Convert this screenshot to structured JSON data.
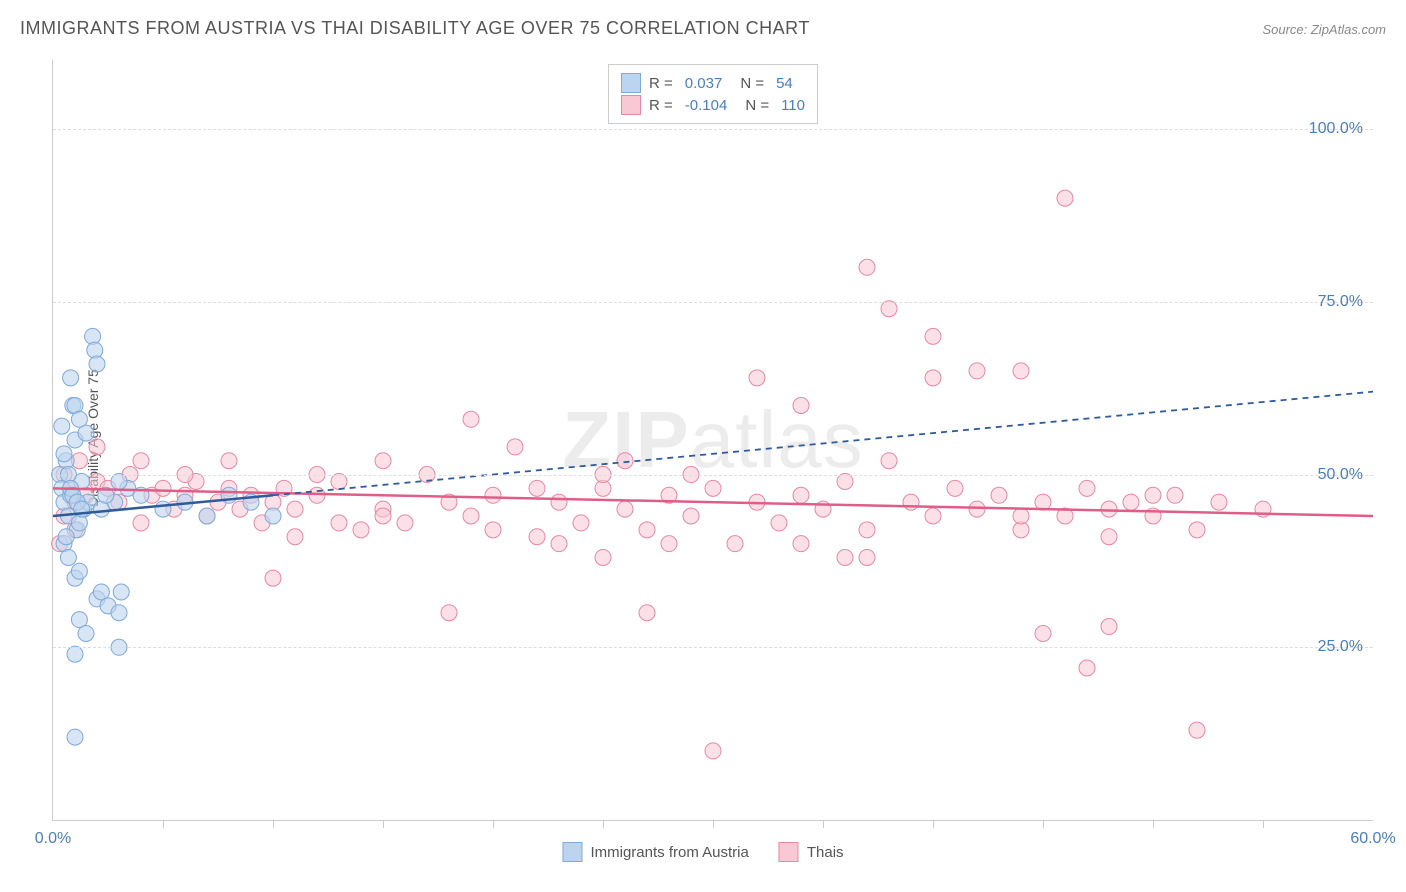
{
  "title": "IMMIGRANTS FROM AUSTRIA VS THAI DISABILITY AGE OVER 75 CORRELATION CHART",
  "source": "Source: ZipAtlas.com",
  "ylabel": "Disability Age Over 75",
  "watermark_part1": "ZIP",
  "watermark_part2": "atlas",
  "chart": {
    "type": "scatter",
    "xlim": [
      0,
      60
    ],
    "ylim": [
      0,
      110
    ],
    "yticks": [
      25,
      50,
      75,
      100
    ],
    "ytick_labels": [
      "25.0%",
      "50.0%",
      "75.0%",
      "100.0%"
    ],
    "xticks_minor": [
      5,
      10,
      15,
      20,
      25,
      30,
      35,
      40,
      45,
      50,
      55
    ],
    "xtick_labels": {
      "0": "0.0%",
      "60": "60.0%"
    },
    "background_color": "#ffffff",
    "grid_color": "#dddddd",
    "axis_color": "#cccccc",
    "tick_label_color": "#4a7ebb",
    "marker_radius": 8,
    "marker_stroke_width": 1,
    "series": [
      {
        "name": "Immigrants from Austria",
        "fill": "#bdd4ee",
        "stroke": "#7fa9d9",
        "fill_opacity": 0.6,
        "R": "0.037",
        "N": "54",
        "trend": {
          "x1": 0,
          "y1": 44,
          "x2": 10,
          "y2": 47,
          "solid": true
        },
        "trend_extrapolate": {
          "x1": 10,
          "y1": 47,
          "x2": 60,
          "y2": 62
        },
        "trend_color": "#2f5b9a",
        "points": [
          [
            0.3,
            50
          ],
          [
            0.4,
            48
          ],
          [
            0.5,
            46
          ],
          [
            0.6,
            52
          ],
          [
            0.7,
            44
          ],
          [
            0.8,
            47
          ],
          [
            0.9,
            60
          ],
          [
            1.0,
            55
          ],
          [
            1.1,
            42
          ],
          [
            1.2,
            43
          ],
          [
            1.3,
            49
          ],
          [
            1.4,
            45
          ],
          [
            1.5,
            56
          ],
          [
            1.6,
            46
          ],
          [
            0.5,
            40
          ],
          [
            0.6,
            41
          ],
          [
            0.7,
            38
          ],
          [
            1.0,
            35
          ],
          [
            1.2,
            36
          ],
          [
            2.0,
            32
          ],
          [
            2.2,
            33
          ],
          [
            2.5,
            31
          ],
          [
            3.0,
            30
          ],
          [
            3.1,
            33
          ],
          [
            2.8,
            46
          ],
          [
            3.4,
            48
          ],
          [
            1.8,
            70
          ],
          [
            1.9,
            68
          ],
          [
            2.0,
            66
          ],
          [
            0.8,
            64
          ],
          [
            1.0,
            60
          ],
          [
            1.2,
            58
          ],
          [
            2.2,
            45
          ],
          [
            2.4,
            47
          ],
          [
            3.0,
            49
          ],
          [
            4.0,
            47
          ],
          [
            5.0,
            45
          ],
          [
            6.0,
            46
          ],
          [
            7.0,
            44
          ],
          [
            8.0,
            47
          ],
          [
            9.0,
            46
          ],
          [
            10.0,
            44
          ],
          [
            1.2,
            29
          ],
          [
            1.5,
            27
          ],
          [
            1.0,
            24
          ],
          [
            3.0,
            25
          ],
          [
            1.0,
            12
          ],
          [
            0.4,
            57
          ],
          [
            0.5,
            53
          ],
          [
            0.7,
            50
          ],
          [
            0.8,
            48
          ],
          [
            0.9,
            47
          ],
          [
            1.1,
            46
          ],
          [
            1.3,
            45
          ]
        ]
      },
      {
        "name": "Thais",
        "fill": "#f8c8d4",
        "stroke": "#e688a2",
        "fill_opacity": 0.55,
        "R": "-0.104",
        "N": "110",
        "trend": {
          "x1": 0,
          "y1": 48,
          "x2": 60,
          "y2": 44,
          "solid": true
        },
        "trend_color": "#de5e88",
        "points": [
          [
            0.5,
            50
          ],
          [
            0.8,
            48
          ],
          [
            1.0,
            46
          ],
          [
            1.2,
            52
          ],
          [
            1.5,
            47
          ],
          [
            2.0,
            49
          ],
          [
            2.5,
            48
          ],
          [
            3.0,
            46
          ],
          [
            3.5,
            50
          ],
          [
            4.0,
            43
          ],
          [
            4.5,
            47
          ],
          [
            5.0,
            48
          ],
          [
            5.5,
            45
          ],
          [
            6.0,
            47
          ],
          [
            6.5,
            49
          ],
          [
            7.0,
            44
          ],
          [
            7.5,
            46
          ],
          [
            8.0,
            48
          ],
          [
            8.5,
            45
          ],
          [
            9.0,
            47
          ],
          [
            9.5,
            43
          ],
          [
            10.0,
            46
          ],
          [
            10.5,
            48
          ],
          [
            11.0,
            45
          ],
          [
            12.0,
            47
          ],
          [
            13.0,
            49
          ],
          [
            10.0,
            35
          ],
          [
            14.0,
            42
          ],
          [
            15.0,
            45
          ],
          [
            16.0,
            43
          ],
          [
            17.0,
            50
          ],
          [
            18.0,
            46
          ],
          [
            15.0,
            52
          ],
          [
            19.0,
            44
          ],
          [
            20.0,
            47
          ],
          [
            21.0,
            54
          ],
          [
            22.0,
            41
          ],
          [
            23.0,
            46
          ],
          [
            18.0,
            30
          ],
          [
            24.0,
            43
          ],
          [
            25.0,
            48
          ],
          [
            26.0,
            45
          ],
          [
            27.0,
            42
          ],
          [
            28.0,
            47
          ],
          [
            25.0,
            50
          ],
          [
            29.0,
            44
          ],
          [
            30.0,
            48
          ],
          [
            31.0,
            40
          ],
          [
            32.0,
            46
          ],
          [
            33.0,
            43
          ],
          [
            26.0,
            52
          ],
          [
            34.0,
            47
          ],
          [
            35.0,
            45
          ],
          [
            36.0,
            49
          ],
          [
            37.0,
            42
          ],
          [
            38.0,
            52
          ],
          [
            27.0,
            30
          ],
          [
            39.0,
            46
          ],
          [
            40.0,
            44
          ],
          [
            41.0,
            48
          ],
          [
            42.0,
            45
          ],
          [
            43.0,
            47
          ],
          [
            32.0,
            64
          ],
          [
            44.0,
            42
          ],
          [
            45.0,
            46
          ],
          [
            46.0,
            44
          ],
          [
            47.0,
            48
          ],
          [
            48.0,
            45
          ],
          [
            37.0,
            80
          ],
          [
            49.0,
            46
          ],
          [
            50.0,
            44
          ],
          [
            51.0,
            47
          ],
          [
            52.0,
            42
          ],
          [
            53.0,
            46
          ],
          [
            40.0,
            70
          ],
          [
            40.0,
            64
          ],
          [
            38.0,
            74
          ],
          [
            36.0,
            38
          ],
          [
            37.0,
            38
          ],
          [
            34.0,
            40
          ],
          [
            42.0,
            65
          ],
          [
            44.0,
            44
          ],
          [
            45.0,
            27
          ],
          [
            46.0,
            90
          ],
          [
            48.0,
            41
          ],
          [
            50.0,
            47
          ],
          [
            44.0,
            65
          ],
          [
            30.0,
            10
          ],
          [
            28.0,
            40
          ],
          [
            25.0,
            38
          ],
          [
            23.0,
            40
          ],
          [
            20.0,
            42
          ],
          [
            47.0,
            22
          ],
          [
            15.0,
            44
          ],
          [
            12.0,
            50
          ],
          [
            8.0,
            52
          ],
          [
            6.0,
            50
          ],
          [
            4.0,
            52
          ],
          [
            52.0,
            13
          ],
          [
            2.0,
            54
          ],
          [
            1.0,
            42
          ],
          [
            0.5,
            44
          ],
          [
            0.3,
            40
          ],
          [
            55.0,
            45
          ],
          [
            34.0,
            60
          ],
          [
            48.0,
            28
          ],
          [
            13.0,
            43
          ],
          [
            22.0,
            48
          ],
          [
            19.0,
            58
          ],
          [
            29.0,
            50
          ],
          [
            11.0,
            41
          ]
        ]
      }
    ]
  },
  "legend_bottom": {
    "series1_label": "Immigrants from Austria",
    "series2_label": "Thais"
  }
}
